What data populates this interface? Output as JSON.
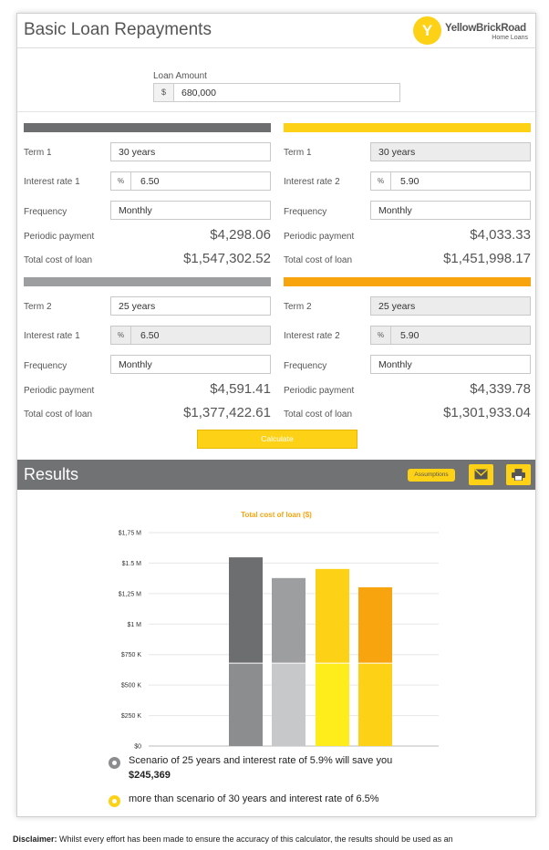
{
  "header": {
    "title": "Basic Loan Repayments",
    "logo_mark": "Y",
    "logo_name": "YellowBrickRoad",
    "logo_sub": "Home Loans"
  },
  "loan": {
    "label": "Loan Amount",
    "prefix": "$",
    "value": "680,000"
  },
  "labels": {
    "term": [
      "Term 1",
      "Term 1",
      "Term 2",
      "Term 2"
    ],
    "rate": [
      "Interest rate 1",
      "Interest rate 2",
      "Interest rate 1",
      "Interest rate 2"
    ],
    "frequency": "Frequency",
    "periodic": "Periodic payment",
    "total": "Total cost of loan",
    "pct": "%"
  },
  "scenarios": [
    {
      "term": "30 years",
      "rate": "6.50",
      "frequency": "Monthly",
      "periodic": "$4,298.06",
      "total": "$1,547,302.52",
      "color": "#6d6e70"
    },
    {
      "term": "30 years",
      "rate": "5.90",
      "frequency": "Monthly",
      "periodic": "$4,033.33",
      "total": "$1,451,998.17",
      "color": "#fcd116"
    },
    {
      "term": "25 years",
      "rate": "6.50",
      "frequency": "Monthly",
      "periodic": "$4,591.41",
      "total": "$1,377,422.61",
      "color": "#9d9ea0"
    },
    {
      "term": "25 years",
      "rate": "5.90",
      "frequency": "Monthly",
      "periodic": "$4,339.78",
      "total": "$1,301,933.04",
      "color": "#f7a40f"
    }
  ],
  "calculate_label": "Calculate",
  "results": {
    "title": "Results",
    "assumptions_label": "Assumptions",
    "email_icon": "envelope-icon",
    "print_icon": "printer-icon"
  },
  "chart_data": {
    "type": "bar",
    "stacked": true,
    "title": "Total cost of loan ($)",
    "ylim": [
      0,
      1750000
    ],
    "yticks": [
      "$0",
      "$250 K",
      "$500 K",
      "$750 K",
      "$1 M",
      "$1,25 M",
      "$1.5 M",
      "$1,75 M"
    ],
    "grid": true,
    "bars": [
      {
        "principal": 680000,
        "total": 1547302.52,
        "colors": [
          "#8c8d8f",
          "#6d6e70"
        ]
      },
      {
        "principal": 680000,
        "total": 1377422.61,
        "colors": [
          "#c7c8ca",
          "#9d9ea0"
        ]
      },
      {
        "principal": 680000,
        "total": 1451998.17,
        "colors": [
          "#ffec1a",
          "#fcd116"
        ]
      },
      {
        "principal": 680000,
        "total": 1301933.04,
        "colors": [
          "#fcd116",
          "#f7a40f"
        ]
      }
    ]
  },
  "legend": {
    "line1": "Scenario of 25 years and interest rate of 5.9% will save you",
    "amount": "$245,369",
    "line2": "more than scenario of 30 years and interest rate of 6.5%",
    "color1": "#8c8d8f",
    "color2": "#fcd116"
  },
  "disclaimer": {
    "label": "Disclaimer:",
    "text": "Whilst every effort has been made to ensure the accuracy of this calculator, the results should be used as an"
  }
}
